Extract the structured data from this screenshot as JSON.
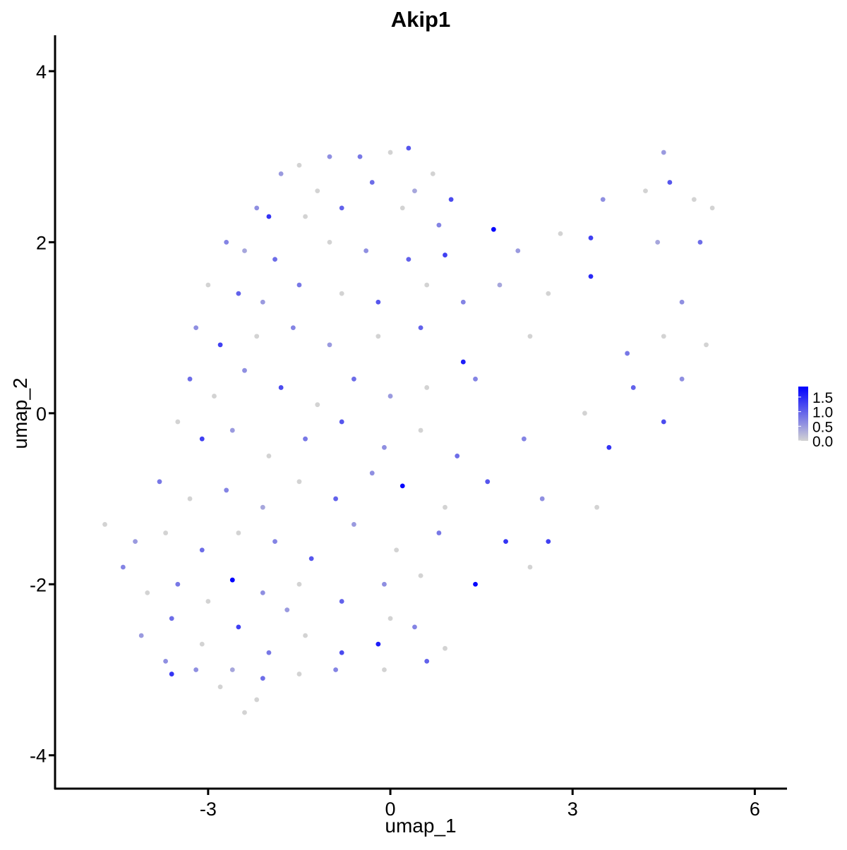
{
  "chart_data": {
    "type": "scatter",
    "title": "Akip1",
    "x_label": "umap_1",
    "y_label": "umap_2",
    "xlim": [
      -5.52,
      6.53
    ],
    "ylim": [
      -4.39,
      4.42
    ],
    "xticks": [
      -3,
      0,
      3,
      6
    ],
    "yticks": [
      -4,
      -2,
      0,
      2,
      4
    ],
    "low_color": "#d3d3d3",
    "high_color": "#0000ff",
    "colorlim": [
      0,
      1.86
    ],
    "colorticks": [
      {
        "value": 0,
        "label": "0.0"
      },
      0.5,
      {
        "value": 1,
        "label": "1.0"
      },
      1.5
    ],
    "x": [
      -1.5,
      -1.0,
      -0.5,
      0.0,
      0.3,
      0.7,
      -1.8,
      -1.2,
      -0.3,
      0.4,
      1.0,
      4.5,
      -2.2,
      -2.0,
      -1.4,
      -0.8,
      0.2,
      0.8,
      1.7,
      4.2,
      4.6,
      5.0,
      5.3,
      3.5,
      -2.7,
      -2.4,
      -1.9,
      -1.0,
      -0.4,
      0.3,
      0.9,
      2.1,
      2.8,
      3.3,
      4.4,
      5.1,
      -3.0,
      -2.5,
      -2.1,
      -1.5,
      -0.8,
      -0.2,
      0.6,
      1.2,
      1.8,
      2.6,
      3.3,
      4.8,
      -3.2,
      -2.8,
      -2.2,
      -1.6,
      -1.0,
      -0.2,
      0.5,
      1.2,
      2.3,
      3.9,
      4.5,
      5.2,
      -3.3,
      -2.9,
      -2.4,
      -1.8,
      -1.2,
      -0.6,
      0.0,
      0.6,
      1.4,
      3.2,
      4.0,
      4.8,
      -3.5,
      -3.1,
      -2.6,
      -2.0,
      -1.4,
      -0.8,
      -0.1,
      0.5,
      1.1,
      2.2,
      3.6,
      4.5,
      -3.8,
      -3.3,
      -2.7,
      -2.1,
      -1.5,
      -0.9,
      -0.3,
      0.2,
      0.9,
      1.6,
      2.5,
      3.4,
      -4.7,
      -4.2,
      -3.7,
      -3.1,
      -2.5,
      -1.9,
      -1.3,
      -0.6,
      0.1,
      0.8,
      1.9,
      2.6,
      -4.4,
      -4.0,
      -3.5,
      -3.0,
      -2.6,
      -2.1,
      -1.5,
      -0.8,
      -0.1,
      0.5,
      1.4,
      2.3,
      -4.1,
      -3.6,
      -3.1,
      -2.5,
      -2.0,
      -1.4,
      -0.8,
      -0.2,
      0.4,
      0.9,
      -1.7,
      0.0,
      -3.6,
      -3.2,
      -2.8,
      -2.2,
      -2.1,
      -1.5,
      -0.9,
      -0.1,
      0.6,
      -2.4,
      -3.7,
      -2.6
    ],
    "y": [
      2.9,
      3.0,
      3.0,
      3.05,
      3.1,
      2.8,
      2.8,
      2.6,
      2.7,
      2.6,
      2.5,
      3.05,
      2.4,
      2.3,
      2.3,
      2.4,
      2.4,
      2.2,
      2.15,
      2.6,
      2.7,
      2.5,
      2.4,
      2.5,
      2.0,
      1.9,
      1.8,
      2.0,
      1.9,
      1.8,
      1.85,
      1.9,
      2.1,
      2.05,
      2.0,
      2.0,
      1.5,
      1.4,
      1.3,
      1.5,
      1.4,
      1.3,
      1.5,
      1.3,
      1.5,
      1.4,
      1.6,
      1.3,
      1.0,
      0.8,
      0.9,
      1.0,
      0.8,
      0.9,
      1.0,
      0.6,
      0.9,
      0.7,
      0.9,
      0.8,
      0.4,
      0.2,
      0.5,
      0.3,
      0.1,
      0.4,
      0.2,
      0.3,
      0.4,
      0.0,
      0.3,
      0.4,
      -0.1,
      -0.3,
      -0.2,
      -0.5,
      -0.3,
      -0.1,
      -0.4,
      -0.2,
      -0.5,
      -0.3,
      -0.4,
      -0.1,
      -0.8,
      -1.0,
      -0.9,
      -1.1,
      -0.8,
      -1.0,
      -0.7,
      -0.85,
      -1.1,
      -0.8,
      -1.0,
      -1.1,
      -1.3,
      -1.5,
      -1.4,
      -1.6,
      -1.4,
      -1.5,
      -1.7,
      -1.3,
      -1.6,
      -1.4,
      -1.5,
      -1.5,
      -1.8,
      -2.1,
      -2.0,
      -2.2,
      -1.95,
      -2.1,
      -2.0,
      -2.2,
      -2.0,
      -1.9,
      -2.0,
      -1.8,
      -2.6,
      -2.4,
      -2.7,
      -2.5,
      -2.8,
      -2.6,
      -2.8,
      -2.7,
      -2.5,
      -2.75,
      -2.3,
      -2.4,
      -3.05,
      -3.0,
      -3.2,
      -3.35,
      -3.1,
      -3.05,
      -3.0,
      -3.0,
      -2.9,
      -3.5,
      -2.9,
      -3.0
    ],
    "values": [
      0,
      0.6,
      0.8,
      0,
      1.1,
      0,
      0.5,
      0,
      0.9,
      0.4,
      1.2,
      0.5,
      0.6,
      1.4,
      0,
      1.0,
      0,
      0.7,
      1.8,
      0,
      1.1,
      0,
      0,
      0.6,
      0.7,
      0.4,
      0.9,
      0,
      0.6,
      1.0,
      1.3,
      0.5,
      0,
      1.3,
      0.4,
      0.9,
      0,
      1.0,
      0.5,
      0.8,
      0,
      1.1,
      0,
      0.7,
      0.4,
      0,
      1.5,
      0.6,
      0.6,
      1.3,
      0,
      0.7,
      0.5,
      0,
      1.0,
      1.6,
      0,
      0.8,
      0,
      0,
      0.9,
      0,
      0.6,
      1.2,
      0,
      0.9,
      0.5,
      0,
      0.7,
      0,
      1.0,
      0.6,
      0,
      1.3,
      0.5,
      0,
      0.8,
      1.1,
      0.6,
      0,
      0.9,
      0.7,
      1.4,
      1.2,
      0.8,
      0,
      0.7,
      0.4,
      0,
      1.0,
      0.6,
      1.8,
      0,
      1.1,
      0.6,
      0,
      0,
      0.5,
      0,
      0.9,
      0,
      0.7,
      1.1,
      0.5,
      0,
      0.8,
      1.4,
      1.3,
      0.7,
      0,
      0.8,
      0,
      1.9,
      0.6,
      0,
      1.0,
      0.6,
      0,
      1.8,
      0,
      0.5,
      0.9,
      0,
      1.3,
      0.8,
      0,
      1.2,
      1.6,
      0.7,
      0,
      0.5,
      0,
      1.4,
      0.6,
      0,
      0,
      0.9,
      0,
      0.7,
      0,
      1.0,
      0,
      0.6,
      0.4
    ]
  }
}
